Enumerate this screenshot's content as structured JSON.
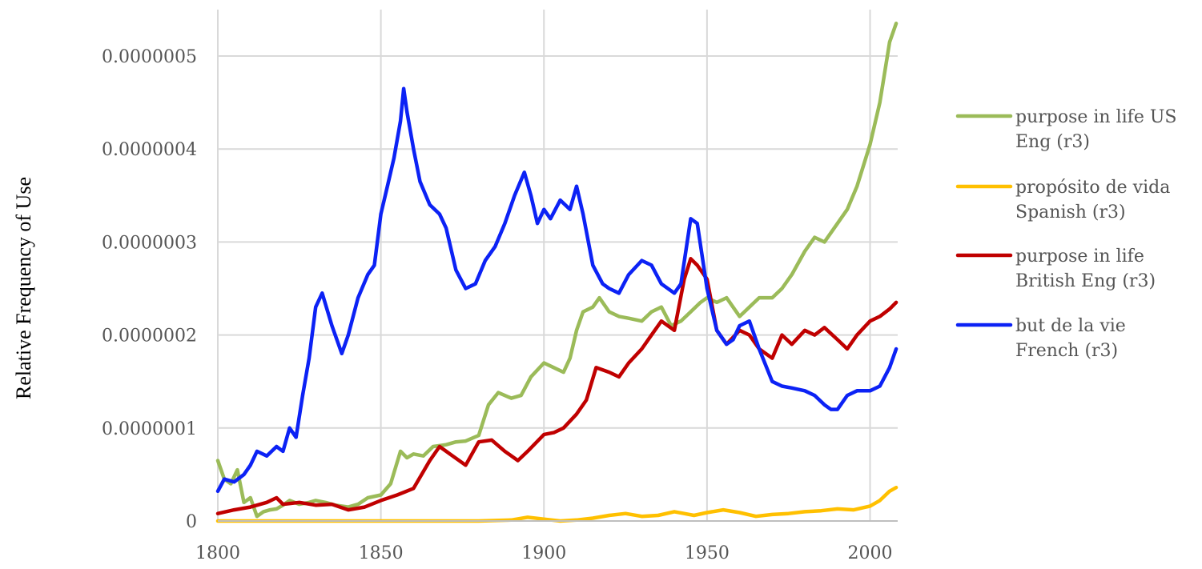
{
  "chart_data": {
    "type": "line",
    "title": "",
    "xlabel": "",
    "ylabel": "Relative Frequency of Use",
    "xlim": [
      1800,
      2008
    ],
    "ylim": [
      0,
      5.4e-07
    ],
    "x_ticks": [
      "1800",
      "1850",
      "1900",
      "1950",
      "2000"
    ],
    "y_ticks": [
      "0",
      "0.0000001",
      "0.0000002",
      "0.0000003",
      "0.0000004",
      "0.0000005"
    ],
    "grid": true,
    "legend_position": "right",
    "series": [
      {
        "name": "purpose in life US Eng (r3)",
        "legend_lines": [
          "purpose in life US",
          "Eng (r3)"
        ],
        "color": "#9bbb59",
        "x": [
          1800,
          1802,
          1804,
          1806,
          1808,
          1810,
          1812,
          1814,
          1816,
          1818,
          1820,
          1822,
          1825,
          1828,
          1830,
          1833,
          1836,
          1840,
          1843,
          1846,
          1850,
          1853,
          1856,
          1858,
          1860,
          1863,
          1866,
          1870,
          1873,
          1876,
          1880,
          1883,
          1886,
          1890,
          1893,
          1896,
          1900,
          1903,
          1906,
          1908,
          1910,
          1912,
          1915,
          1917,
          1920,
          1923,
          1926,
          1930,
          1933,
          1936,
          1939,
          1942,
          1945,
          1948,
          1950,
          1953,
          1956,
          1960,
          1963,
          1966,
          1970,
          1973,
          1976,
          1980,
          1983,
          1986,
          1990,
          1993,
          1996,
          2000,
          2003,
          2006,
          2008
        ],
        "y": [
          6.5e-08,
          4.5e-08,
          4e-08,
          5.5e-08,
          2e-08,
          2.5e-08,
          5e-09,
          1e-08,
          1.2e-08,
          1.3e-08,
          1.7e-08,
          2.2e-08,
          1.8e-08,
          2e-08,
          2.2e-08,
          2e-08,
          1.7e-08,
          1.5e-08,
          1.8e-08,
          2.5e-08,
          2.8e-08,
          4e-08,
          7.5e-08,
          6.8e-08,
          7.2e-08,
          7e-08,
          8e-08,
          8.2e-08,
          8.5e-08,
          8.6e-08,
          9.2e-08,
          1.25e-07,
          1.38e-07,
          1.32e-07,
          1.35e-07,
          1.55e-07,
          1.7e-07,
          1.65e-07,
          1.6e-07,
          1.75e-07,
          2.05e-07,
          2.25e-07,
          2.3e-07,
          2.4e-07,
          2.25e-07,
          2.2e-07,
          2.18e-07,
          2.15e-07,
          2.25e-07,
          2.3e-07,
          2.1e-07,
          2.15e-07,
          2.25e-07,
          2.35e-07,
          2.4e-07,
          2.35e-07,
          2.4e-07,
          2.2e-07,
          2.3e-07,
          2.4e-07,
          2.4e-07,
          2.5e-07,
          2.65e-07,
          2.9e-07,
          3.05e-07,
          3e-07,
          3.2e-07,
          3.35e-07,
          3.6e-07,
          4.05e-07,
          4.5e-07,
          5.15e-07,
          5.35e-07
        ]
      },
      {
        "name": "propósito de vida Spanish (r3)",
        "legend_lines": [
          "propósito de vida",
          "Spanish (r3)"
        ],
        "color": "#ffc000",
        "x": [
          1800,
          1820,
          1840,
          1850,
          1860,
          1870,
          1880,
          1890,
          1895,
          1900,
          1905,
          1910,
          1915,
          1920,
          1925,
          1930,
          1935,
          1940,
          1943,
          1946,
          1950,
          1955,
          1960,
          1965,
          1970,
          1975,
          1980,
          1985,
          1990,
          1995,
          2000,
          2003,
          2006,
          2008
        ],
        "y": [
          0,
          0,
          0,
          0,
          0,
          0,
          0,
          1e-09,
          4e-09,
          2e-09,
          0,
          1e-09,
          3e-09,
          6e-09,
          8e-09,
          5e-09,
          6e-09,
          1e-08,
          8e-09,
          6e-09,
          9e-09,
          1.2e-08,
          9e-09,
          5e-09,
          7e-09,
          8e-09,
          1e-08,
          1.1e-08,
          1.3e-08,
          1.2e-08,
          1.6e-08,
          2.2e-08,
          3.2e-08,
          3.6e-08
        ]
      },
      {
        "name": "purpose in life British Eng (r3)",
        "legend_lines": [
          "purpose in life",
          "British Eng (r3)"
        ],
        "color": "#c00000",
        "x": [
          1800,
          1805,
          1810,
          1815,
          1818,
          1820,
          1825,
          1830,
          1835,
          1840,
          1845,
          1850,
          1855,
          1860,
          1865,
          1868,
          1872,
          1876,
          1880,
          1884,
          1888,
          1892,
          1895,
          1900,
          1903,
          1906,
          1910,
          1913,
          1916,
          1920,
          1923,
          1926,
          1930,
          1933,
          1936,
          1940,
          1943,
          1945,
          1947,
          1950,
          1953,
          1956,
          1960,
          1963,
          1966,
          1970,
          1973,
          1976,
          1980,
          1983,
          1986,
          1990,
          1993,
          1996,
          2000,
          2003,
          2006,
          2008
        ],
        "y": [
          8e-09,
          1.2e-08,
          1.5e-08,
          2e-08,
          2.5e-08,
          1.8e-08,
          2e-08,
          1.7e-08,
          1.8e-08,
          1.2e-08,
          1.5e-08,
          2.2e-08,
          2.8e-08,
          3.5e-08,
          6.5e-08,
          8e-08,
          7e-08,
          6e-08,
          8.5e-08,
          8.7e-08,
          7.5e-08,
          6.5e-08,
          7.5e-08,
          9.3e-08,
          9.5e-08,
          1e-07,
          1.15e-07,
          1.3e-07,
          1.65e-07,
          1.6e-07,
          1.55e-07,
          1.7e-07,
          1.85e-07,
          2e-07,
          2.15e-07,
          2.05e-07,
          2.6e-07,
          2.82e-07,
          2.75e-07,
          2.6e-07,
          2.05e-07,
          1.9e-07,
          2.05e-07,
          2e-07,
          1.85e-07,
          1.75e-07,
          2e-07,
          1.9e-07,
          2.05e-07,
          2e-07,
          2.08e-07,
          1.95e-07,
          1.85e-07,
          2e-07,
          2.15e-07,
          2.2e-07,
          2.28e-07,
          2.35e-07
        ]
      },
      {
        "name": "but de la vie French (r3)",
        "legend_lines": [
          "but de la vie",
          "French (r3)"
        ],
        "color": "#0c22f5",
        "x": [
          1800,
          1802,
          1805,
          1808,
          1810,
          1812,
          1815,
          1818,
          1820,
          1822,
          1824,
          1826,
          1828,
          1830,
          1832,
          1835,
          1838,
          1840,
          1843,
          1846,
          1848,
          1850,
          1852,
          1854,
          1856,
          1857,
          1858,
          1860,
          1862,
          1865,
          1868,
          1870,
          1873,
          1876,
          1879,
          1882,
          1885,
          1888,
          1891,
          1894,
          1896,
          1898,
          1900,
          1902,
          1905,
          1908,
          1910,
          1912,
          1915,
          1918,
          1920,
          1923,
          1926,
          1930,
          1933,
          1936,
          1940,
          1942,
          1945,
          1947,
          1950,
          1953,
          1956,
          1958,
          1960,
          1963,
          1966,
          1970,
          1973,
          1976,
          1980,
          1983,
          1986,
          1988,
          1990,
          1993,
          1996,
          2000,
          2003,
          2006,
          2008
        ],
        "y": [
          3.2e-08,
          4.5e-08,
          4.2e-08,
          5e-08,
          6e-08,
          7.5e-08,
          7e-08,
          8e-08,
          7.5e-08,
          1e-07,
          9e-08,
          1.35e-07,
          1.75e-07,
          2.3e-07,
          2.45e-07,
          2.1e-07,
          1.8e-07,
          2e-07,
          2.4e-07,
          2.65e-07,
          2.75e-07,
          3.3e-07,
          3.6e-07,
          3.9e-07,
          4.3e-07,
          4.65e-07,
          4.4e-07,
          4e-07,
          3.65e-07,
          3.4e-07,
          3.3e-07,
          3.15e-07,
          2.7e-07,
          2.5e-07,
          2.55e-07,
          2.8e-07,
          2.95e-07,
          3.2e-07,
          3.5e-07,
          3.75e-07,
          3.5e-07,
          3.2e-07,
          3.35e-07,
          3.25e-07,
          3.45e-07,
          3.35e-07,
          3.6e-07,
          3.3e-07,
          2.75e-07,
          2.55e-07,
          2.5e-07,
          2.45e-07,
          2.65e-07,
          2.8e-07,
          2.75e-07,
          2.55e-07,
          2.45e-07,
          2.55e-07,
          3.25e-07,
          3.2e-07,
          2.5e-07,
          2.05e-07,
          1.9e-07,
          1.95e-07,
          2.1e-07,
          2.15e-07,
          1.85e-07,
          1.5e-07,
          1.45e-07,
          1.43e-07,
          1.4e-07,
          1.35e-07,
          1.25e-07,
          1.2e-07,
          1.2e-07,
          1.35e-07,
          1.4e-07,
          1.4e-07,
          1.45e-07,
          1.65e-07,
          1.85e-07
        ]
      }
    ]
  }
}
